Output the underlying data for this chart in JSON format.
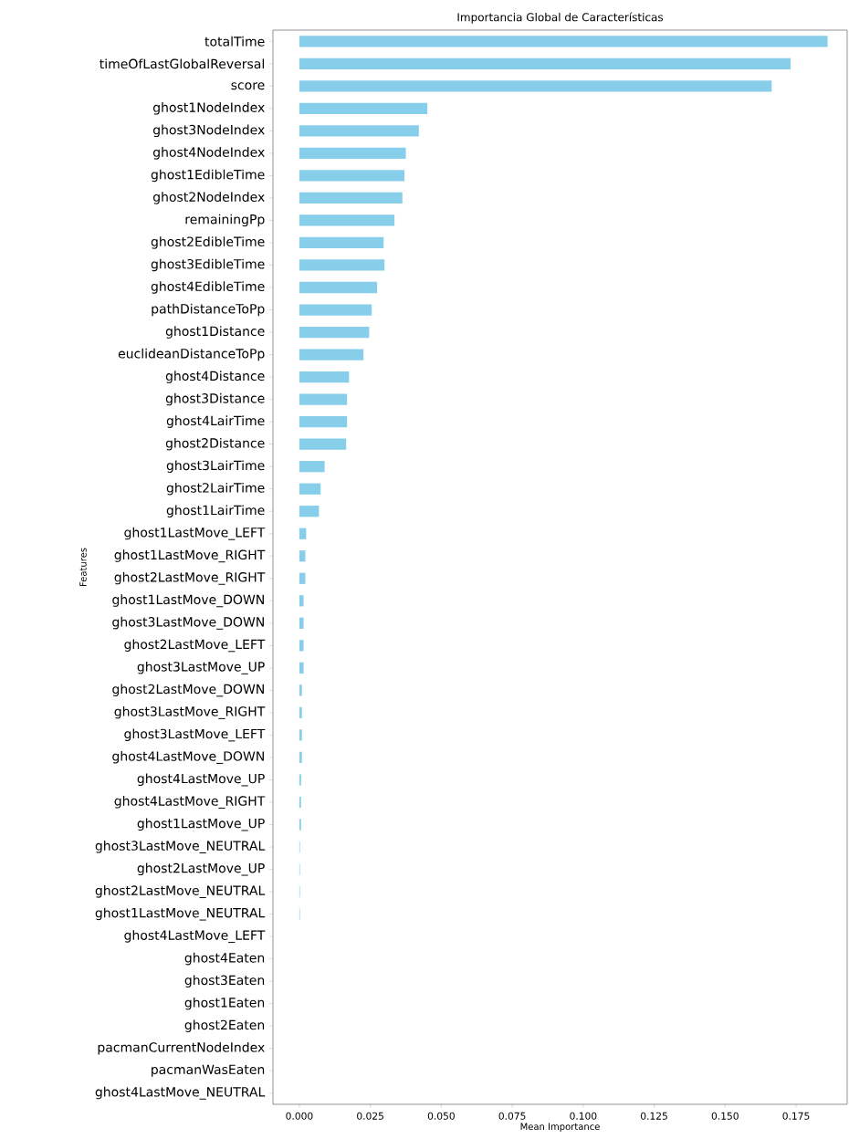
{
  "chart_data": {
    "type": "bar",
    "orientation": "horizontal",
    "title": "Importancia Global de Características",
    "xlabel": "Mean Importance",
    "ylabel": "Features",
    "categories": [
      "totalTime",
      "timeOfLastGlobalReversal",
      "score",
      "ghost1NodeIndex",
      "ghost3NodeIndex",
      "ghost4NodeIndex",
      "ghost1EdibleTime",
      "ghost2NodeIndex",
      "remainingPp",
      "ghost2EdibleTime",
      "ghost3EdibleTime",
      "ghost4EdibleTime",
      "pathDistanceToPp",
      "ghost1Distance",
      "euclideanDistanceToPp",
      "ghost4Distance",
      "ghost3Distance",
      "ghost4LairTime",
      "ghost2Distance",
      "ghost3LairTime",
      "ghost2LairTime",
      "ghost1LairTime",
      "ghost1LastMove_LEFT",
      "ghost1LastMove_RIGHT",
      "ghost2LastMove_RIGHT",
      "ghost1LastMove_DOWN",
      "ghost3LastMove_DOWN",
      "ghost2LastMove_LEFT",
      "ghost3LastMove_UP",
      "ghost2LastMove_DOWN",
      "ghost3LastMove_RIGHT",
      "ghost3LastMove_LEFT",
      "ghost4LastMove_DOWN",
      "ghost4LastMove_UP",
      "ghost4LastMove_RIGHT",
      "ghost1LastMove_UP",
      "ghost3LastMove_NEUTRAL",
      "ghost2LastMove_UP",
      "ghost2LastMove_NEUTRAL",
      "ghost1LastMove_NEUTRAL",
      "ghost4LastMove_LEFT",
      "ghost4Eaten",
      "ghost3Eaten",
      "ghost1Eaten",
      "ghost2Eaten",
      "pacmanCurrentNodeIndex",
      "pacmanWasEaten",
      "ghost4LastMove_NEUTRAL"
    ],
    "values": [
      0.1861,
      0.1731,
      0.1664,
      0.0451,
      0.0421,
      0.0375,
      0.037,
      0.0363,
      0.0335,
      0.0297,
      0.03,
      0.0274,
      0.0255,
      0.0246,
      0.0226,
      0.0175,
      0.0168,
      0.0168,
      0.0165,
      0.0089,
      0.0075,
      0.0069,
      0.0024,
      0.0021,
      0.0021,
      0.0015,
      0.0015,
      0.0015,
      0.0015,
      0.0009,
      0.0009,
      0.0009,
      0.0009,
      0.0006,
      0.0006,
      0.0006,
      0.0002,
      0.0002,
      0.0002,
      0.0002,
      0,
      0,
      0,
      0,
      0,
      0,
      0,
      0
    ],
    "color": "#87ceeb",
    "xlim": [
      -0.0093,
      0.193
    ],
    "xticks": [
      {
        "value": 0,
        "label": "0.000"
      },
      {
        "value": 0.025,
        "label": "0.025"
      },
      {
        "value": 0.05,
        "label": "0.050"
      },
      {
        "value": 0.075,
        "label": "0.075"
      },
      {
        "value": 0.1,
        "label": "0.100"
      },
      {
        "value": 0.125,
        "label": "0.125"
      },
      {
        "value": 0.15,
        "label": "0.150"
      },
      {
        "value": 0.175,
        "label": "0.175"
      }
    ]
  }
}
